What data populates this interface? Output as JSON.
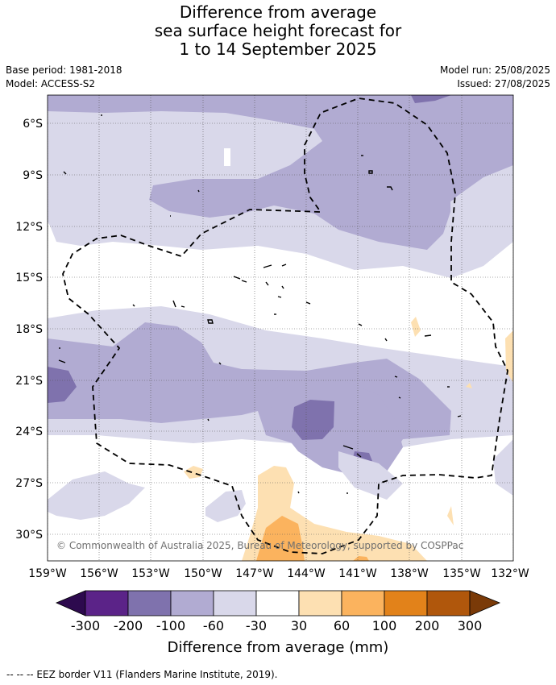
{
  "title": {
    "line1": "Difference from average",
    "line2": "sea surface height forecast for",
    "line3": "1 to 14 September 2025"
  },
  "info": {
    "base_period": "Base period: 1981-2018",
    "model": "Model: ACCESS-S2",
    "model_run": "Model run: 25/08/2025",
    "issued": "Issued: 27/08/2025"
  },
  "map": {
    "lat_labels": [
      "6°S",
      "9°S",
      "12°S",
      "15°S",
      "18°S",
      "21°S",
      "24°S",
      "27°S",
      "30°S"
    ],
    "lon_labels": [
      "159°W",
      "156°W",
      "153°W",
      "150°W",
      "147°W",
      "144°W",
      "141°W",
      "138°W",
      "135°W",
      "132°W"
    ],
    "copyright": "© Commonwealth of Australia 2025, Bureau of Meteorology, supported by COSPPac",
    "lon_range": [
      -159,
      -132
    ],
    "lat_range": [
      -31.5,
      -4.5
    ]
  },
  "colorbar": {
    "labels": [
      "-300",
      "-200",
      "-100",
      "-60",
      "-30",
      "30",
      "60",
      "100",
      "200",
      "300"
    ],
    "colors": {
      "below_-300": "#2d0a4e",
      "-300_-200": "#5b2388",
      "-200_-100": "#7f72ad",
      "-100_-60": "#b1abd2",
      "-60_-30": "#d9d8ea",
      "-30_30": "#ffffff",
      "30_60": "#fde0b2",
      "60_100": "#fbb35e",
      "100_200": "#e2821a",
      "200_300": "#b0570c",
      "above_300": "#7a3a08"
    },
    "title": "Difference from average (mm)"
  },
  "footer": "--  --  -- EEZ border V11 (Flanders Marine Institute, 2019)."
}
